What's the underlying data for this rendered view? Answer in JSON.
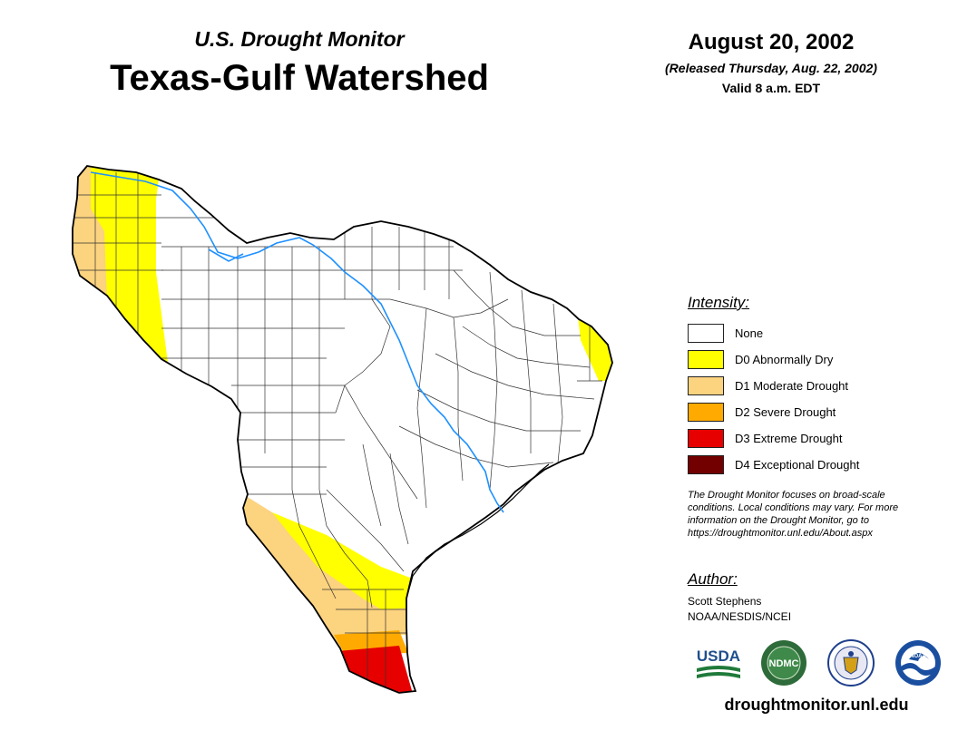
{
  "header": {
    "product": "U.S. Drought Monitor",
    "region_title": "Texas-Gulf Watershed",
    "date": "August 20, 2002",
    "released": "(Released Thursday, Aug. 22, 2002)",
    "valid": "Valid 8 a.m. EDT"
  },
  "legend": {
    "title": "Intensity:",
    "items": [
      {
        "label": "None",
        "color": "#ffffff"
      },
      {
        "label": "D0 Abnormally Dry",
        "color": "#ffff00"
      },
      {
        "label": "D1 Moderate Drought",
        "color": "#fcd37f"
      },
      {
        "label": "D2 Severe Drought",
        "color": "#ffaa00"
      },
      {
        "label": "D3 Extreme Drought",
        "color": "#e60000"
      },
      {
        "label": "D4 Exceptional Drought",
        "color": "#730000"
      }
    ]
  },
  "disclaimer": {
    "lines": [
      "The Drought Monitor focuses on broad-scale",
      "conditions. Local conditions may vary. For more",
      "information on the Drought Monitor, go to",
      "https://droughtmonitor.unl.edu/About.aspx"
    ]
  },
  "author": {
    "heading": "Author:",
    "name": "Scott Stephens",
    "org": "NOAA/NESDIS/NCEI"
  },
  "logos": {
    "usda_text": "USDA",
    "ndmc_text": "NDMC",
    "noaa_text": "NOAA"
  },
  "footer": {
    "url": "droughtmonitor.unl.edu"
  },
  "map": {
    "river_color": "#1e90ff",
    "border_color": "#000000",
    "county_line_color": "#333333"
  }
}
